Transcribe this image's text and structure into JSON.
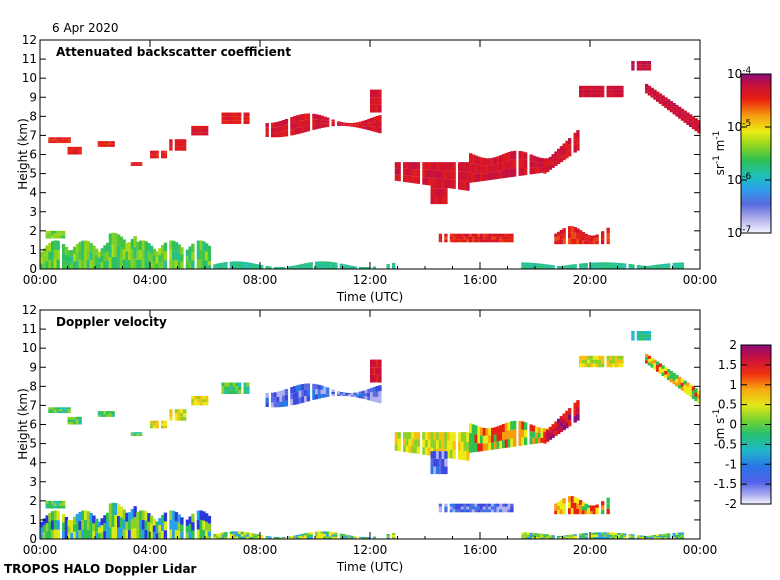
{
  "date_label": "6 Apr 2020",
  "footer_label": "TROPOS HALO Doppler Lidar",
  "chart_data": [
    {
      "type": "heatmap",
      "title": "Attenuated backscatter coefficient",
      "xlabel": "Time (UTC)",
      "ylabel": "Height (km)",
      "xlim": [
        0,
        24
      ],
      "ylim": [
        0,
        12
      ],
      "xticks": [
        "00:00",
        "04:00",
        "08:00",
        "12:00",
        "16:00",
        "20:00",
        "00:00"
      ],
      "xtick_hours": [
        0,
        4,
        8,
        12,
        16,
        20,
        24
      ],
      "yticks": [
        "0",
        "1",
        "2",
        "3",
        "4",
        "5",
        "6",
        "7",
        "8",
        "9",
        "10",
        "11",
        "12"
      ],
      "colorbar": {
        "label": "sr-1 m-1",
        "scale": "log",
        "range": [
          1e-07,
          0.0001
        ],
        "ticks": [
          {
            "base": "10",
            "exp": "-4",
            "pos": 0
          },
          {
            "base": "10",
            "exp": "-5",
            "pos": 0.3333
          },
          {
            "base": "10",
            "exp": "-6",
            "pos": 0.6667
          },
          {
            "base": "10",
            "exp": "-7",
            "pos": 1
          }
        ]
      },
      "features": [
        {
          "name": "boundary layer aerosol",
          "t0": 0,
          "t1": 6.2,
          "h0": 0,
          "h1": 1.5,
          "level": 0.45
        },
        {
          "name": "surface aerosol",
          "t0": 6.2,
          "t1": 13.0,
          "h0": 0,
          "h1": 0.4,
          "level": 0.42
        },
        {
          "name": "cirrus ascending",
          "t0": 0.3,
          "t1": 6.0,
          "h0": 5.5,
          "h1": 7.5,
          "level": 0.88
        },
        {
          "name": "cirrus 07-12",
          "t0": 6.5,
          "t1": 12.4,
          "h0": 7.0,
          "h1": 8.3,
          "level": 0.9
        },
        {
          "name": "mid-level cloud",
          "t0": 12.8,
          "t1": 18.5,
          "h0": 3.5,
          "h1": 6.5,
          "level": 0.88
        },
        {
          "name": "cirrus 19-24",
          "t0": 19.5,
          "t1": 24,
          "h0": 7.0,
          "h1": 10.8,
          "level": 0.93
        },
        {
          "name": "low cloud 15-17",
          "t0": 14.5,
          "t1": 17.2,
          "h0": 1.4,
          "h1": 1.9,
          "level": 0.85
        },
        {
          "name": "low cloud 19-21",
          "t0": 18.7,
          "t1": 20.7,
          "h0": 1.3,
          "h1": 2.3,
          "level": 0.85
        }
      ]
    },
    {
      "type": "heatmap",
      "title": "Doppler velocity",
      "xlabel": "Time (UTC)",
      "ylabel": "Height (km)",
      "xlim": [
        0,
        24
      ],
      "ylim": [
        0,
        12
      ],
      "xticks": [
        "00:00",
        "04:00",
        "08:00",
        "12:00",
        "16:00",
        "20:00",
        "00:00"
      ],
      "xtick_hours": [
        0,
        4,
        8,
        12,
        16,
        20,
        24
      ],
      "yticks": [
        "0",
        "1",
        "2",
        "3",
        "4",
        "5",
        "6",
        "7",
        "8",
        "9",
        "10",
        "11",
        "12"
      ],
      "colorbar": {
        "label": "m s-1",
        "scale": "linear",
        "range": [
          -2,
          2
        ],
        "ticks": [
          "2",
          "1.5",
          "1",
          "0.5",
          "0",
          "-0.5",
          "-1",
          "-1.5",
          "-2"
        ]
      }
    }
  ]
}
